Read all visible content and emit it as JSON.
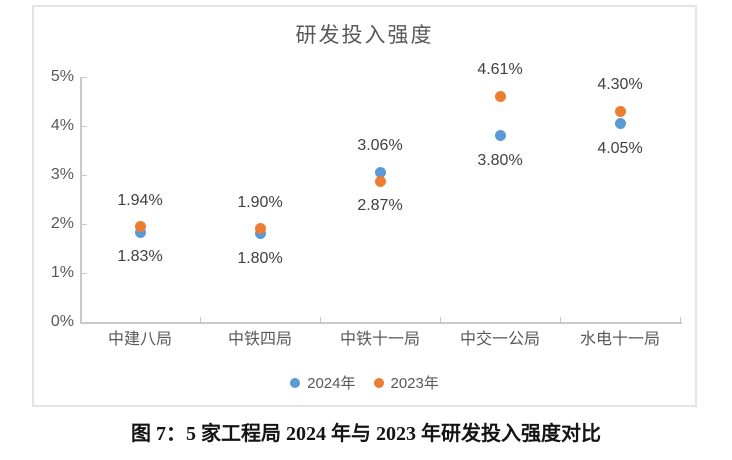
{
  "chart_data": {
    "type": "scatter",
    "title": "研发投入强度",
    "categories": [
      "中建八局",
      "中铁四局",
      "中铁十一局",
      "中交一公局",
      "水电十一局"
    ],
    "series": [
      {
        "name": "2024年",
        "color": "#5B9BD5",
        "values": [
          1.83,
          1.8,
          3.06,
          3.8,
          4.05
        ],
        "labels": [
          "1.83%",
          "1.80%",
          "3.06%",
          "3.80%",
          "4.05%"
        ]
      },
      {
        "name": "2023年",
        "color": "#ED7D31",
        "values": [
          1.94,
          1.9,
          2.87,
          4.61,
          4.3
        ],
        "labels": [
          "1.94%",
          "1.90%",
          "2.87%",
          "4.61%",
          "4.30%"
        ]
      }
    ],
    "y_axis": {
      "min": 0,
      "max": 5,
      "ticks": [
        "0%",
        "1%",
        "2%",
        "3%",
        "4%",
        "5%"
      ]
    },
    "grid": false,
    "legend_position": "bottom",
    "legend": [
      {
        "label": "2024年",
        "color": "#5B9BD5"
      },
      {
        "label": "2023年",
        "color": "#ED7D31"
      }
    ]
  },
  "caption": "图 7：5 家工程局 2024 年与 2023 年研发投入强度对比",
  "colors": {
    "series_2024": "#5B9BD5",
    "series_2023": "#ED7D31",
    "axis": "#C9C9C9",
    "panel_border": "#E4E4E4",
    "axis_text": "#595959",
    "data_label_text": "#404040",
    "caption_text": "#141414"
  }
}
